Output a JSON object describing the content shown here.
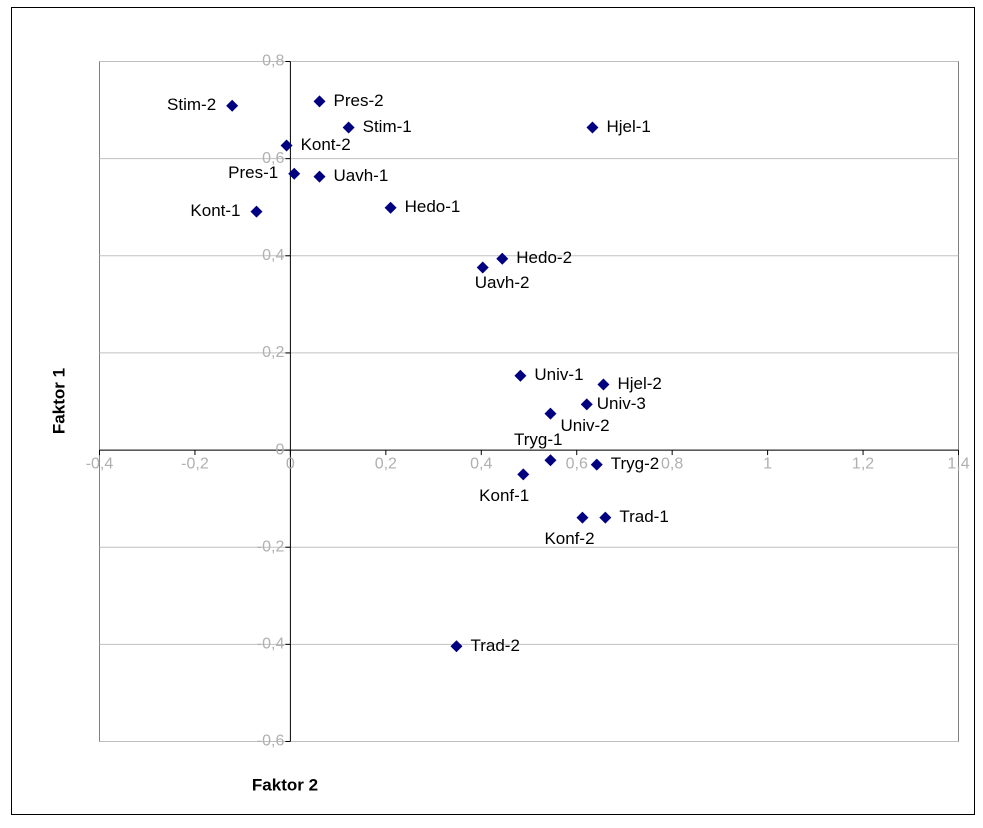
{
  "chart_data": {
    "type": "scatter",
    "color": "#000080",
    "grid": true,
    "xlabel": "Faktor 2",
    "ylabel": "Faktor 1",
    "xlim": [
      -0.4,
      1.4
    ],
    "ylim": [
      -0.6,
      0.8
    ],
    "xticks": [
      {
        "value": -0.4,
        "label": "-0,4"
      },
      {
        "value": -0.2,
        "label": "-0,2"
      },
      0,
      {
        "value": 0.2,
        "label": "0,2"
      },
      {
        "value": 0.4,
        "label": "0,4"
      },
      {
        "value": 0.6,
        "label": "0,6"
      },
      {
        "value": 0.8,
        "label": "0,8"
      },
      1,
      {
        "value": 1.2,
        "label": "1,2"
      },
      {
        "value": 1.4,
        "label": "1,4"
      }
    ],
    "yticks": [
      {
        "value": -0.6,
        "label": "-0,6"
      },
      {
        "value": -0.4,
        "label": "-0,4"
      },
      {
        "value": -0.2,
        "label": "-0,2"
      },
      0,
      {
        "value": 0.2,
        "label": "0,2"
      },
      {
        "value": 0.4,
        "label": "0,4"
      },
      {
        "value": 0.6,
        "label": "0,6"
      },
      {
        "value": 0.8,
        "label": "0,8"
      }
    ],
    "points": [
      {
        "label": "Stim-2",
        "x": -0.122,
        "y": 0.709
      },
      {
        "label": "Pres-2",
        "x": 0.061,
        "y": 0.718
      },
      {
        "label": "Stim-1",
        "x": 0.122,
        "y": 0.664
      },
      {
        "label": "Hjel-1",
        "x": 0.633,
        "y": 0.664
      },
      {
        "label": "Kont-2",
        "x": -0.008,
        "y": 0.627
      },
      {
        "label": "Pres-1",
        "x": 0.008,
        "y": 0.569
      },
      {
        "label": "Uavh-1",
        "x": 0.061,
        "y": 0.563
      },
      {
        "label": "Kont-1",
        "x": -0.071,
        "y": 0.491
      },
      {
        "label": "Hedo-1",
        "x": 0.21,
        "y": 0.499
      },
      {
        "label": "Hedo-2",
        "x": 0.444,
        "y": 0.394
      },
      {
        "label": "Uavh-2",
        "x": 0.403,
        "y": 0.376
      },
      {
        "label": "Univ-1",
        "x": 0.482,
        "y": 0.153
      },
      {
        "label": "Hjel-2",
        "x": 0.656,
        "y": 0.135
      },
      {
        "label": "Univ-3",
        "x": 0.621,
        "y": 0.094
      },
      {
        "label": "Univ-2",
        "x": 0.545,
        "y": 0.075
      },
      {
        "label": "Tryg-1",
        "x": 0.545,
        "y": -0.021
      },
      {
        "label": "Tryg-2",
        "x": 0.642,
        "y": -0.03
      },
      {
        "label": "Konf-1",
        "x": 0.488,
        "y": -0.05
      },
      {
        "label": "Konf-2",
        "x": 0.612,
        "y": -0.139
      },
      {
        "label": "Trad-1",
        "x": 0.66,
        "y": -0.139
      },
      {
        "label": "Trad-2",
        "x": 0.348,
        "y": -0.404
      }
    ]
  }
}
